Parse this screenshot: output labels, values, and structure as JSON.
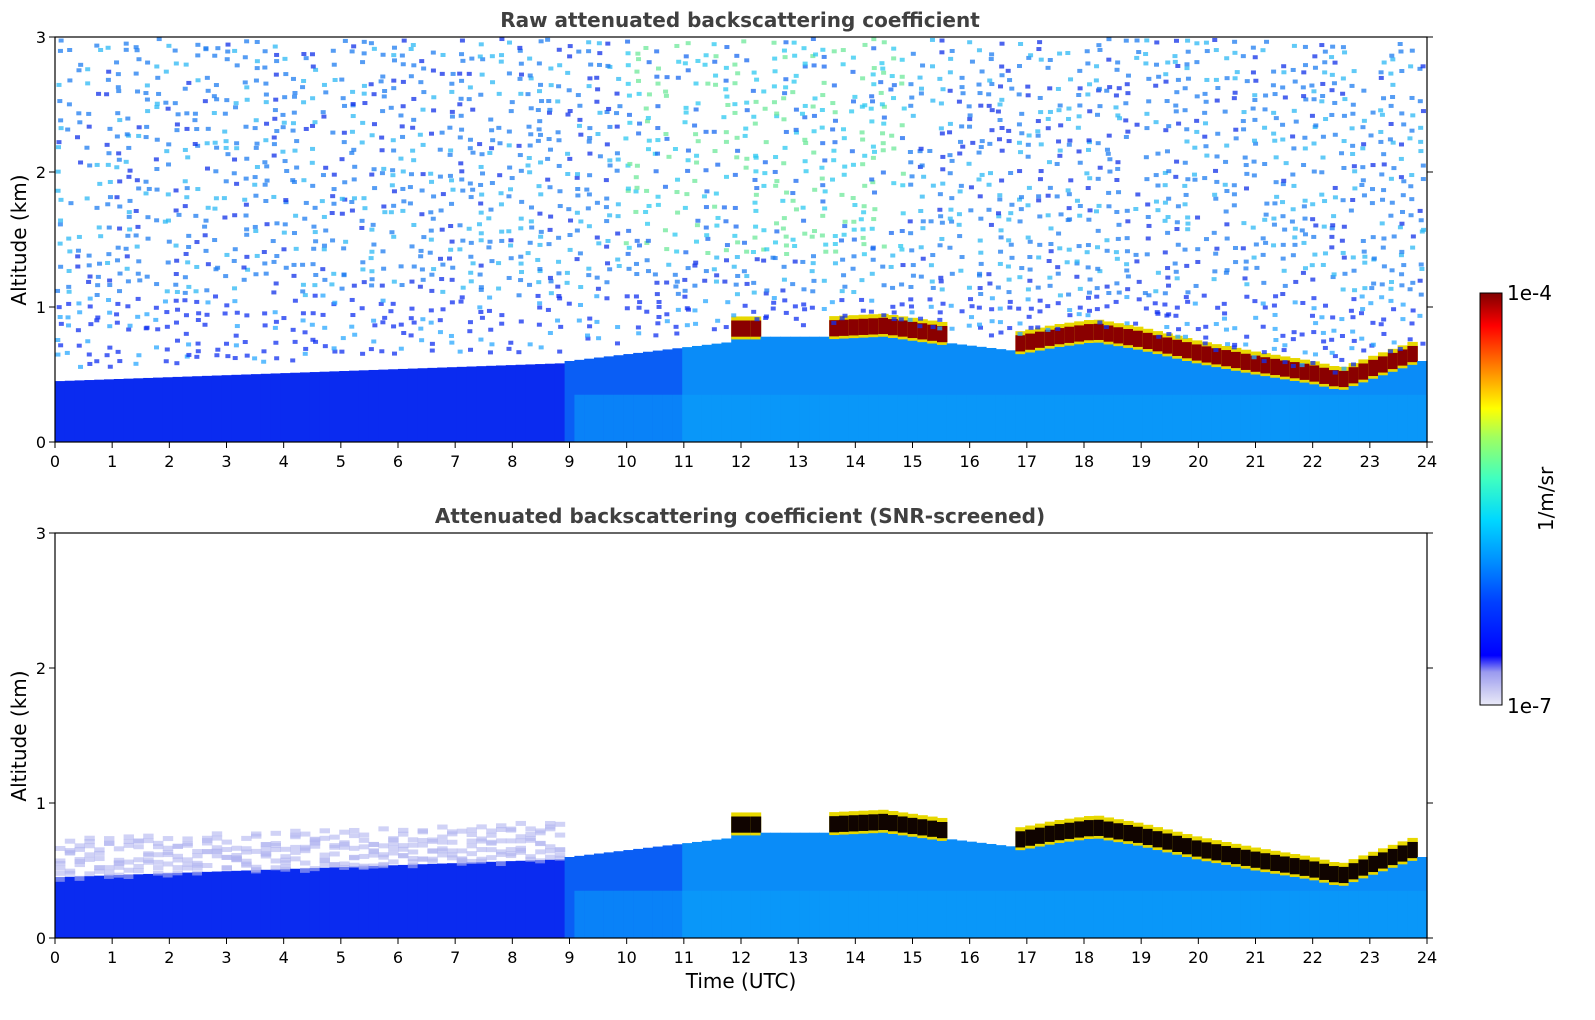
{
  "chart_data": [
    {
      "type": "heatmap",
      "title": "Raw attenuated backscattering coefficient",
      "xlabel": "",
      "ylabel": "Altitude (km)",
      "xlim": [
        0,
        24
      ],
      "ylim": [
        0,
        3
      ],
      "xticks": [
        "0",
        "1",
        "2",
        "3",
        "4",
        "5",
        "6",
        "7",
        "8",
        "9",
        "10",
        "11",
        "12",
        "13",
        "14",
        "15",
        "16",
        "17",
        "18",
        "19",
        "20",
        "21",
        "22",
        "23",
        "24"
      ],
      "yticks": [
        "0",
        "1",
        "2",
        "3"
      ],
      "screened": false,
      "cloud_base_km": [
        {
          "x": 11.9,
          "y": 0.78
        },
        {
          "x": 12.4,
          "y": 0.78
        },
        {
          "x": 13.5,
          "y": 0.78
        },
        {
          "x": 14.5,
          "y": 0.8
        },
        {
          "x": 15.5,
          "y": 0.74
        },
        {
          "x": 16.9,
          "y": 0.67
        },
        {
          "x": 17.5,
          "y": 0.72
        },
        {
          "x": 18.2,
          "y": 0.76
        },
        {
          "x": 19.0,
          "y": 0.7
        },
        {
          "x": 20.0,
          "y": 0.6
        },
        {
          "x": 21.0,
          "y": 0.52
        },
        {
          "x": 22.0,
          "y": 0.45
        },
        {
          "x": 22.5,
          "y": 0.4
        },
        {
          "x": 23.0,
          "y": 0.48
        },
        {
          "x": 23.8,
          "y": 0.6
        }
      ]
    },
    {
      "type": "heatmap",
      "title": "Attenuated backscattering coefficient (SNR-screened)",
      "xlabel": "Time (UTC)",
      "ylabel": "Altitude (km)",
      "xlim": [
        0,
        24
      ],
      "ylim": [
        0,
        3
      ],
      "xticks": [
        "0",
        "1",
        "2",
        "3",
        "4",
        "5",
        "6",
        "7",
        "8",
        "9",
        "10",
        "11",
        "12",
        "13",
        "14",
        "15",
        "16",
        "17",
        "18",
        "19",
        "20",
        "21",
        "22",
        "23",
        "24"
      ],
      "yticks": [
        "0",
        "1",
        "2",
        "3"
      ],
      "screened": true,
      "cloud_base_km": [
        {
          "x": 11.9,
          "y": 0.78
        },
        {
          "x": 12.4,
          "y": 0.78
        },
        {
          "x": 13.5,
          "y": 0.78
        },
        {
          "x": 14.5,
          "y": 0.8
        },
        {
          "x": 15.5,
          "y": 0.74
        },
        {
          "x": 16.9,
          "y": 0.67
        },
        {
          "x": 17.5,
          "y": 0.72
        },
        {
          "x": 18.2,
          "y": 0.76
        },
        {
          "x": 19.0,
          "y": 0.7
        },
        {
          "x": 20.0,
          "y": 0.6
        },
        {
          "x": 21.0,
          "y": 0.52
        },
        {
          "x": 22.0,
          "y": 0.45
        },
        {
          "x": 22.5,
          "y": 0.4
        },
        {
          "x": 23.0,
          "y": 0.48
        },
        {
          "x": 23.8,
          "y": 0.6
        }
      ]
    }
  ],
  "colorbar": {
    "max_label": "1e-4",
    "min_label": "1e-7",
    "unit": "1/m/sr",
    "colormap": "jet",
    "colors": [
      "#e6e6f8",
      "#c8c8f4",
      "#a0a0f0",
      "#0000ff",
      "#0080ff",
      "#00ffff",
      "#80ff80",
      "#ffff00",
      "#ff8000",
      "#ff0000",
      "#800000"
    ]
  }
}
